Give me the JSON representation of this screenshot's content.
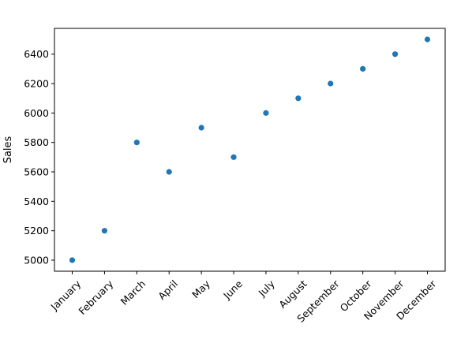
{
  "chart_data": {
    "type": "scatter",
    "x": [
      "January",
      "February",
      "March",
      "April",
      "May",
      "June",
      "July",
      "August",
      "September",
      "October",
      "November",
      "December"
    ],
    "y": [
      5000,
      5200,
      5800,
      5600,
      5900,
      5700,
      6000,
      6100,
      6200,
      6300,
      6400,
      6500
    ],
    "xlabel": "",
    "ylabel": "Sales",
    "ylim": [
      4925,
      6575
    ],
    "yticks": [
      5000,
      5200,
      5400,
      5600,
      5800,
      6000,
      6200,
      6400
    ],
    "grid": false,
    "legend": "none",
    "xtick_rotation_deg": 45,
    "marker_color": "#1f77b4"
  }
}
